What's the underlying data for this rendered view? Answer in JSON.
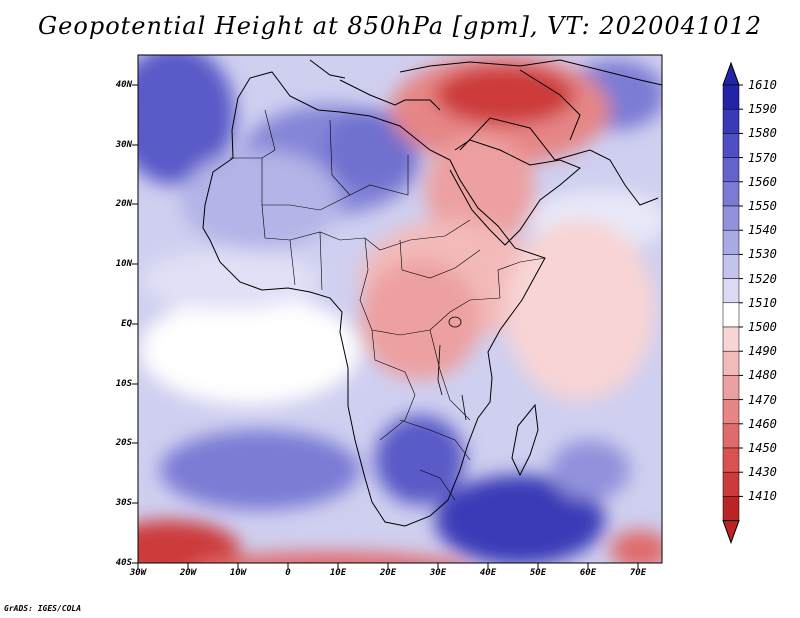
{
  "title": "Geopotential Height at 850hPa [gpm], VT: 2020041012",
  "credit": "GrADS: IGES/COLA",
  "lat_labels": [
    "40N",
    "30N",
    "20N",
    "10N",
    "EQ",
    "10S",
    "20S",
    "30S",
    "40S"
  ],
  "lon_labels": [
    "30W",
    "20W",
    "10W",
    "0",
    "10E",
    "20E",
    "30E",
    "40E",
    "50E",
    "60E",
    "70E"
  ],
  "colorbar": {
    "labels": [
      "1610",
      "1590",
      "1580",
      "1570",
      "1560",
      "1550",
      "1540",
      "1530",
      "1520",
      "1510",
      "1500",
      "1490",
      "1480",
      "1470",
      "1460",
      "1450",
      "1430",
      "1410"
    ],
    "colors": [
      "#2323a6",
      "#3a3ab7",
      "#4f4fc4",
      "#6363cc",
      "#7b7bd5",
      "#9292dc",
      "#a9a9e3",
      "#c3c3ec",
      "#dadaf4",
      "#ffffff",
      "#f8d4d4",
      "#f3baba",
      "#eda0a0",
      "#e68686",
      "#df6c6c",
      "#d85252",
      "#cd3a3a",
      "#bb2424"
    ]
  }
}
